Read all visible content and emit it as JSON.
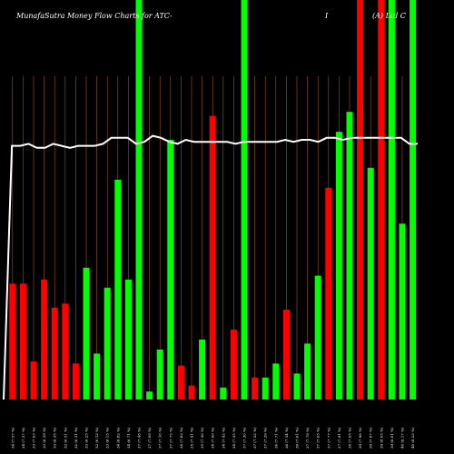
{
  "chart_data": {
    "type": "bar",
    "title_left": "MunafaSutra  Money Flow  Charts for ATC-",
    "title_mid": "I",
    "title_right": "(A) Ltd  C",
    "colors": {
      "up": "#00ff00",
      "down": "#ff0000",
      "grid": "#a0522d",
      "line": "#ffffff",
      "background": "#000000"
    },
    "ylim": [
      0,
      100
    ],
    "bars": [
      {
        "label": "34 (7.57 %)",
        "value": 29,
        "direction": "down"
      },
      {
        "label": "34 (7.57 %)",
        "value": 29,
        "direction": "down"
      },
      {
        "label": "33 (7.03 %)",
        "value": 9.5,
        "direction": "down"
      },
      {
        "label": "33 (6.39 %)",
        "value": 30,
        "direction": "down"
      },
      {
        "label": "33 (6.35 %)",
        "value": 23,
        "direction": "down"
      },
      {
        "label": "32 (6.51 %)",
        "value": 24,
        "direction": "down"
      },
      {
        "label": "32 (6.31 %)",
        "value": 9,
        "direction": "down"
      },
      {
        "label": "33 (6.25 %)",
        "value": 33,
        "direction": "up"
      },
      {
        "label": "32 (6.12 %)",
        "value": 11.5,
        "direction": "up"
      },
      {
        "label": "33 (6.15 %)",
        "value": 28,
        "direction": "up"
      },
      {
        "label": "34 (6.82 %)",
        "value": 55,
        "direction": "up"
      },
      {
        "label": "34 (6.71 %)",
        "value": 30,
        "direction": "up"
      },
      {
        "label": "37 (7.48 %)",
        "value": 100,
        "direction": "up"
      },
      {
        "label": "37 (7.09 %)",
        "value": 2,
        "direction": "up"
      },
      {
        "label": "37 (7.16 %)",
        "value": 12.5,
        "direction": "up"
      },
      {
        "label": "37 (7.73 %)",
        "value": 65,
        "direction": "up"
      },
      {
        "label": "36 (7.82 %)",
        "value": 8.5,
        "direction": "down"
      },
      {
        "label": "35 (7.41 %)",
        "value": 3.5,
        "direction": "down"
      },
      {
        "label": "35 (7.56 %)",
        "value": 15,
        "direction": "up"
      },
      {
        "label": "34 (7.06 %)",
        "value": 71,
        "direction": "down"
      },
      {
        "label": "34 (7.42 %)",
        "value": 3,
        "direction": "up"
      },
      {
        "label": "34 (7.35 %)",
        "value": 17.5,
        "direction": "down"
      },
      {
        "label": "37 (7.30 %)",
        "value": 100,
        "direction": "up"
      },
      {
        "label": "37 (7.52 %)",
        "value": 5.5,
        "direction": "down"
      },
      {
        "label": "37 (7.39 %)",
        "value": 5.5,
        "direction": "up"
      },
      {
        "label": "36 (7.71 %)",
        "value": 9,
        "direction": "up"
      },
      {
        "label": "36 (7.54 %)",
        "value": 22.5,
        "direction": "down"
      },
      {
        "label": "36 (7.61 %)",
        "value": 6.5,
        "direction": "up"
      },
      {
        "label": "37 (7.79 %)",
        "value": 14,
        "direction": "up"
      },
      {
        "label": "37 (7.63 %)",
        "value": 31,
        "direction": "up"
      },
      {
        "label": "37 (7.77 %)",
        "value": 53,
        "direction": "down"
      },
      {
        "label": "37 (7.91 %)",
        "value": 67,
        "direction": "up"
      },
      {
        "label": "38 (7.65 %)",
        "value": 72,
        "direction": "up"
      },
      {
        "label": "39 (7.98 %)",
        "value": 100,
        "direction": "down"
      },
      {
        "label": "39 (7.87 %)",
        "value": 58,
        "direction": "up"
      },
      {
        "label": "39 (8.05 %)",
        "value": 100,
        "direction": "down"
      },
      {
        "label": "39 (8.01 %)",
        "value": 100,
        "direction": "up"
      },
      {
        "label": "40 (8.17 %)",
        "value": 44,
        "direction": "up"
      },
      {
        "label": "40 (8.23 %)",
        "value": 100,
        "direction": "up"
      }
    ],
    "line_values": [
      0,
      63.5,
      63.5,
      64,
      63,
      63,
      64,
      63.5,
      63,
      63.5,
      63.5,
      63.5,
      64,
      65.5,
      65.5,
      65.5,
      64,
      64.5,
      66,
      65.5,
      64.5,
      64,
      65,
      64.5,
      64.5,
      64.5,
      64.5,
      64.5,
      64,
      64.5,
      64.5,
      64.5,
      64.5,
      64.5,
      65,
      64.5,
      65,
      65,
      64.5,
      65.5,
      65.5,
      65,
      65.5,
      65.5,
      65.5,
      65.5,
      65.5,
      65.5,
      65.5,
      64,
      64
    ]
  }
}
